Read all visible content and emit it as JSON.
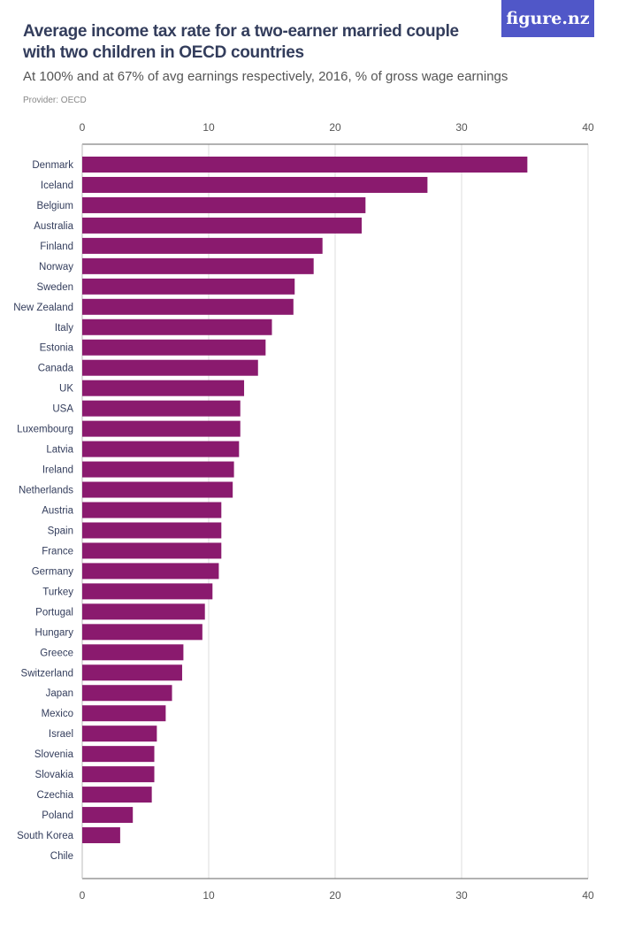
{
  "title": "Average income tax rate for a two-earner married couple with two children in OECD countries",
  "subtitle": "At 100% and at 67% of avg earnings respectively, 2016, % of gross wage earnings",
  "provider": "Provider: OECD",
  "logo": "figure.nz",
  "colors": {
    "bar": "#8a1a6e",
    "logo_bg": "#5057c8"
  },
  "chart_data": {
    "type": "bar",
    "orientation": "horizontal",
    "xlim": [
      0,
      40
    ],
    "ticks": [
      0,
      10,
      20,
      30,
      40
    ],
    "grid": true,
    "categories": [
      "Denmark",
      "Iceland",
      "Belgium",
      "Australia",
      "Finland",
      "Norway",
      "Sweden",
      "New Zealand",
      "Italy",
      "Estonia",
      "Canada",
      "UK",
      "USA",
      "Luxembourg",
      "Latvia",
      "Ireland",
      "Netherlands",
      "Austria",
      "Spain",
      "France",
      "Germany",
      "Turkey",
      "Portugal",
      "Hungary",
      "Greece",
      "Switzerland",
      "Japan",
      "Mexico",
      "Israel",
      "Slovenia",
      "Slovakia",
      "Czechia",
      "Poland",
      "South Korea",
      "Chile"
    ],
    "values": [
      35.2,
      27.3,
      22.4,
      22.1,
      19.0,
      18.3,
      16.8,
      16.7,
      15.0,
      14.5,
      13.9,
      12.8,
      12.5,
      12.5,
      12.4,
      12.0,
      11.9,
      11.0,
      11.0,
      11.0,
      10.8,
      10.3,
      9.7,
      9.5,
      8.0,
      7.9,
      7.1,
      6.6,
      5.9,
      5.7,
      5.7,
      5.5,
      4.0,
      3.0,
      0
    ]
  }
}
